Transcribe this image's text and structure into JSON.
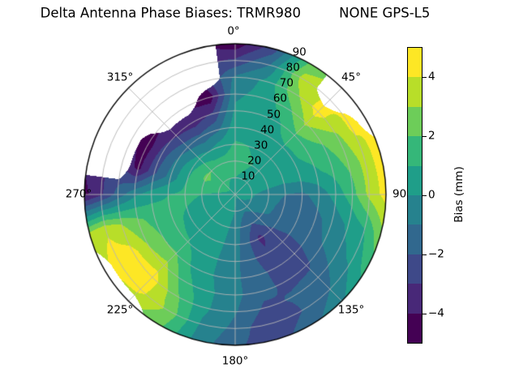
{
  "title": "Delta Antenna Phase Biases: TRMR980         NONE GPS-L5",
  "chart_data": {
    "type": "heatmap",
    "projection": "polar",
    "title": "Delta Antenna Phase Biases: TRMR980         NONE GPS-L5",
    "theta_direction": "clockwise",
    "theta_zero": "top",
    "angle_labels": [
      "0°",
      "45°",
      "90°",
      "135°",
      "180°",
      "225°",
      "270°",
      "315°"
    ],
    "radial_tick_labels": [
      "10",
      "20",
      "30",
      "40",
      "50",
      "60",
      "70",
      "80",
      "90"
    ],
    "radial_range": [
      0,
      90
    ],
    "grid_on": true,
    "legend_position": "colorbar-right",
    "azimuths_deg": [
      0,
      15,
      30,
      45,
      60,
      75,
      90,
      105,
      120,
      135,
      150,
      165,
      180,
      195,
      210,
      225,
      240,
      255,
      270,
      285,
      300,
      315,
      330,
      345
    ],
    "zeniths_deg": [
      0,
      10,
      20,
      30,
      40,
      50,
      60,
      70,
      80,
      90
    ],
    "values_mm": [
      [
        0.4,
        1.0,
        1.4,
        1.1,
        0.6,
        0.2,
        -0.2,
        -0.8,
        -2.8,
        -4.7
      ],
      [
        0.4,
        0.9,
        1.2,
        1.0,
        0.6,
        0.4,
        0.3,
        0.2,
        -1.0,
        -2.5
      ],
      [
        0.4,
        0.8,
        1.0,
        0.8,
        0.6,
        0.8,
        1.5,
        2.6,
        3.4,
        2.2
      ],
      [
        0.4,
        0.6,
        0.6,
        0.6,
        0.8,
        1.8,
        3.2,
        4.5,
        null,
        null
      ],
      [
        0.4,
        0.5,
        0.5,
        0.5,
        0.8,
        1.4,
        2.0,
        2.8,
        4.2,
        null
      ],
      [
        0.5,
        0.3,
        0.2,
        0.2,
        0.4,
        0.8,
        1.4,
        2.2,
        3.4,
        4.6
      ],
      [
        0.4,
        0.1,
        -0.4,
        -1.0,
        -1.2,
        -0.6,
        0.4,
        1.6,
        3.3,
        4.4
      ],
      [
        0.4,
        0.0,
        -0.6,
        -1.4,
        -1.6,
        -1.2,
        -0.6,
        0.2,
        1.0,
        2.8
      ],
      [
        0.4,
        -0.2,
        -0.8,
        -1.4,
        -1.6,
        -1.4,
        -1.0,
        -0.4,
        0.2,
        1.4
      ],
      [
        0.3,
        -0.6,
        -1.5,
        -2.2,
        -2.5,
        -2.5,
        -2.2,
        -1.6,
        -1.0,
        -0.2
      ],
      [
        0.3,
        -0.8,
        -2.0,
        -3.3,
        -2.8,
        -2.4,
        -2.2,
        -1.9,
        -2.0,
        -1.4
      ],
      [
        0.2,
        -0.6,
        -1.4,
        -1.8,
        -1.8,
        -1.6,
        -1.7,
        -2.2,
        -2.9,
        -2.6
      ],
      [
        0.2,
        0.0,
        -0.4,
        -0.6,
        -0.7,
        -0.8,
        -0.7,
        -0.9,
        -1.3,
        -1.8
      ],
      [
        0.3,
        0.3,
        0.2,
        0.1,
        0.0,
        0.0,
        0.2,
        0.2,
        -0.1,
        -0.4
      ],
      [
        0.4,
        0.4,
        0.4,
        0.4,
        0.5,
        0.8,
        1.4,
        2.2,
        2.8,
        2.2
      ],
      [
        0.4,
        0.5,
        0.5,
        0.6,
        1.1,
        2.1,
        3.4,
        4.6,
        4.3,
        null
      ],
      [
        0.5,
        0.5,
        0.6,
        0.8,
        1.2,
        2.0,
        3.0,
        4.4,
        4.6,
        null
      ],
      [
        0.5,
        0.7,
        0.8,
        1.0,
        1.2,
        1.6,
        2.2,
        3.0,
        3.8,
        3.2
      ],
      [
        0.6,
        0.8,
        1.0,
        1.2,
        1.0,
        0.6,
        -0.2,
        -1.6,
        -3.2,
        -4.3
      ],
      [
        0.6,
        1.3,
        1.8,
        1.0,
        -0.6,
        -2.2,
        -4.3,
        null,
        null,
        null
      ],
      [
        0.6,
        1.6,
        2.2,
        0.8,
        -0.8,
        -2.6,
        -4.6,
        null,
        null,
        null
      ],
      [
        0.6,
        1.5,
        2.0,
        0.4,
        -1.4,
        -3.2,
        null,
        null,
        null,
        null
      ],
      [
        0.5,
        1.2,
        1.6,
        0.0,
        -1.7,
        -3.6,
        null,
        null,
        null,
        null
      ],
      [
        0.5,
        1.0,
        1.3,
        0.6,
        -1.2,
        -2.8,
        -4.7,
        null,
        null,
        null
      ]
    ],
    "levels": [
      -5,
      -4,
      -3,
      -2,
      -1,
      0,
      1,
      2,
      3,
      4,
      5
    ],
    "band_colors": [
      "#440154",
      "#482878",
      "#3e4989",
      "#31688e",
      "#26828e",
      "#1f9e89",
      "#35b779",
      "#6dcd59",
      "#b8de29",
      "#fde725"
    ],
    "no_data_color": "#ffffff",
    "gridline_color": "#b4b4b4",
    "outline_color": "#000000",
    "colorbar": {
      "label": "Bias (mm)",
      "tick_labels": [
        "4",
        "2",
        "0",
        "−2",
        "−4"
      ],
      "tick_values": [
        4,
        2,
        0,
        -2,
        -4
      ],
      "range": [
        -5,
        5
      ]
    }
  }
}
